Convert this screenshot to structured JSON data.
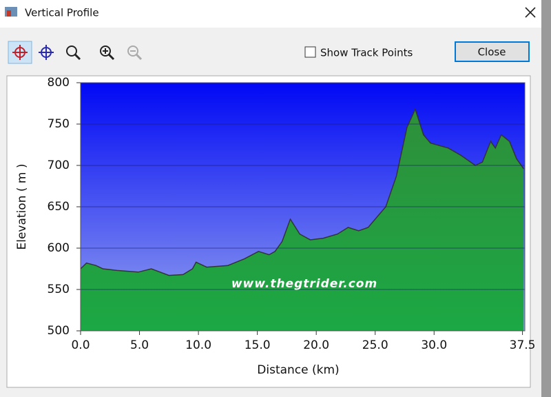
{
  "window": {
    "title": "Vertical Profile"
  },
  "toolbar": {
    "checkbox_label": "Show Track Points",
    "button": "Close"
  },
  "chart_data": {
    "type": "area",
    "watermark": "www.thegtrider.com",
    "x_label": "Distance   (km)",
    "y_label": "Elevation ( m )",
    "x": [
      0,
      0.5,
      1.3,
      1.9,
      3.1,
      4.9,
      6.0,
      7.5,
      8.7,
      9.5,
      9.8,
      10.7,
      12.5,
      13.9,
      15.1,
      16.0,
      16.5,
      17.1,
      17.8,
      18.6,
      19.5,
      20.6,
      21.8,
      22.7,
      23.6,
      24.4,
      25.0,
      25.9,
      26.8,
      27.7,
      28.4,
      29.1,
      29.7,
      31.2,
      32.3,
      33.5,
      34.1,
      34.8,
      35.2,
      35.7,
      36.4,
      37.0,
      37.6
    ],
    "values": [
      575,
      582,
      579,
      575,
      573,
      571,
      575,
      567,
      568,
      575,
      583,
      577,
      579,
      587,
      596,
      592,
      596,
      608,
      635,
      617,
      610,
      612,
      617,
      625,
      621,
      625,
      635,
      650,
      687,
      746,
      768,
      737,
      727,
      721,
      712,
      700,
      704,
      729,
      721,
      737,
      729,
      708,
      696
    ],
    "color": "#1f9a40",
    "xlim": [
      0,
      37.7
    ],
    "ylim": [
      500,
      800
    ],
    "xticks": [
      {
        "value": 0,
        "label": "0.0"
      },
      {
        "value": 5,
        "label": "5.0"
      },
      {
        "value": 10,
        "label": "10.0"
      },
      {
        "value": 15,
        "label": "15.0"
      },
      {
        "value": 20,
        "label": "20.0"
      },
      {
        "value": 25,
        "label": "25.0"
      },
      {
        "value": 30,
        "label": "30.0"
      },
      37.5
    ],
    "yticks": [
      500,
      550,
      600,
      650,
      700,
      750,
      800
    ],
    "grid": true
  }
}
